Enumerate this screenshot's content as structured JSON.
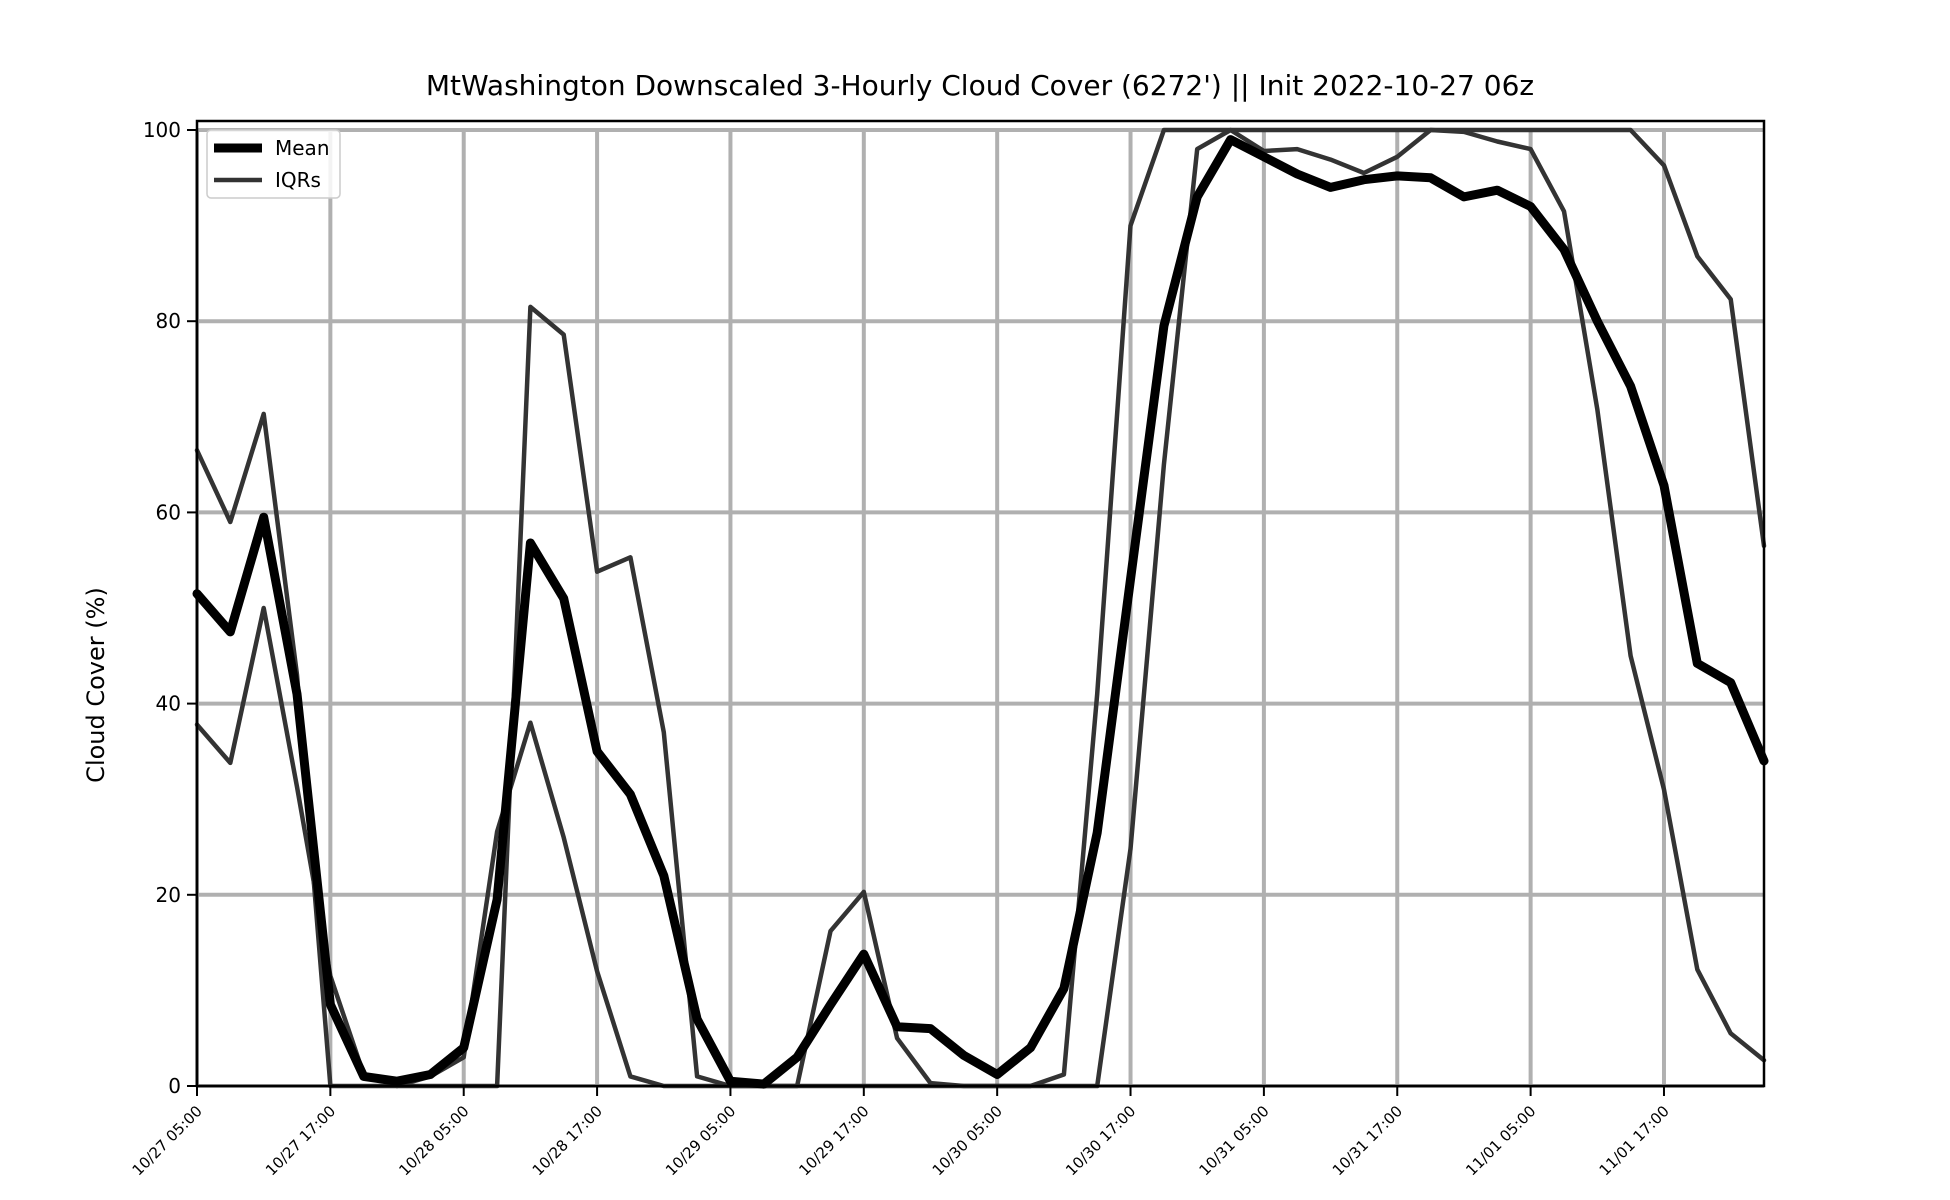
{
  "chart_data": {
    "type": "line",
    "title": "MtWashington Downscaled 3-Hourly Cloud Cover (6272') || Init 2022-10-27 06z",
    "xlabel": "",
    "ylabel": "Cloud Cover (%)",
    "ylim": [
      0,
      100
    ],
    "yticks": [
      0,
      20,
      40,
      60,
      80,
      100
    ],
    "x_start": "10/27 05:00",
    "x_step_hours": 3,
    "xticks": [
      "10/27 05:00",
      "10/27 17:00",
      "10/28 05:00",
      "10/28 17:00",
      "10/29 05:00",
      "10/29 17:00",
      "10/30 05:00",
      "10/30 17:00",
      "10/31 05:00",
      "10/31 17:00",
      "11/01 05:00",
      "11/01 17:00"
    ],
    "grid": true,
    "legend_position": "top-left",
    "series": [
      {
        "name": "Mean",
        "color": "#000000",
        "values": [
          51.5,
          47.5,
          59.5,
          41,
          8.5,
          1,
          0.5,
          1.2,
          4,
          19.5,
          56.8,
          51,
          35,
          30.5,
          22,
          7,
          0.5,
          0.2,
          3,
          8.5,
          13.8,
          6.2,
          6,
          3.2,
          1.2,
          4,
          10.2,
          26.5,
          53,
          79.5,
          93,
          99,
          97.2,
          95.4,
          94,
          94.8,
          95.2,
          95,
          93,
          93.7,
          92,
          87.5,
          80,
          73.2,
          62.8,
          44.2,
          42.2,
          34
        ]
      },
      {
        "name": "IQRs",
        "color": "#333333",
        "values": [
          66.5,
          59,
          70.3,
          43,
          0,
          0,
          0,
          0,
          0,
          0,
          81.5,
          78.6,
          53.8,
          55.3,
          37,
          1,
          0,
          0,
          0,
          16.2,
          20.3,
          5,
          0.3,
          0,
          0,
          0,
          1.2,
          41,
          90,
          100,
          100,
          100,
          100,
          100,
          100,
          100,
          100,
          100,
          100,
          100,
          100,
          100,
          100,
          100,
          96.3,
          86.8,
          82.3,
          56.5
        ]
      },
      {
        "name": "",
        "color": "#333333",
        "values": [
          37.8,
          33.8,
          50,
          31.3,
          11.5,
          1.2,
          0,
          1,
          3,
          26.6,
          38,
          26,
          12,
          1,
          0,
          0,
          0,
          0,
          0,
          0,
          0,
          0,
          0,
          0,
          0,
          0,
          0,
          0,
          24.8,
          65,
          98,
          100,
          97.8,
          98,
          96.9,
          95.5,
          97.2,
          100,
          99.8,
          98.8,
          98,
          91.5,
          70.8,
          45,
          31,
          12.2,
          5.5,
          2.7
        ]
      }
    ]
  }
}
